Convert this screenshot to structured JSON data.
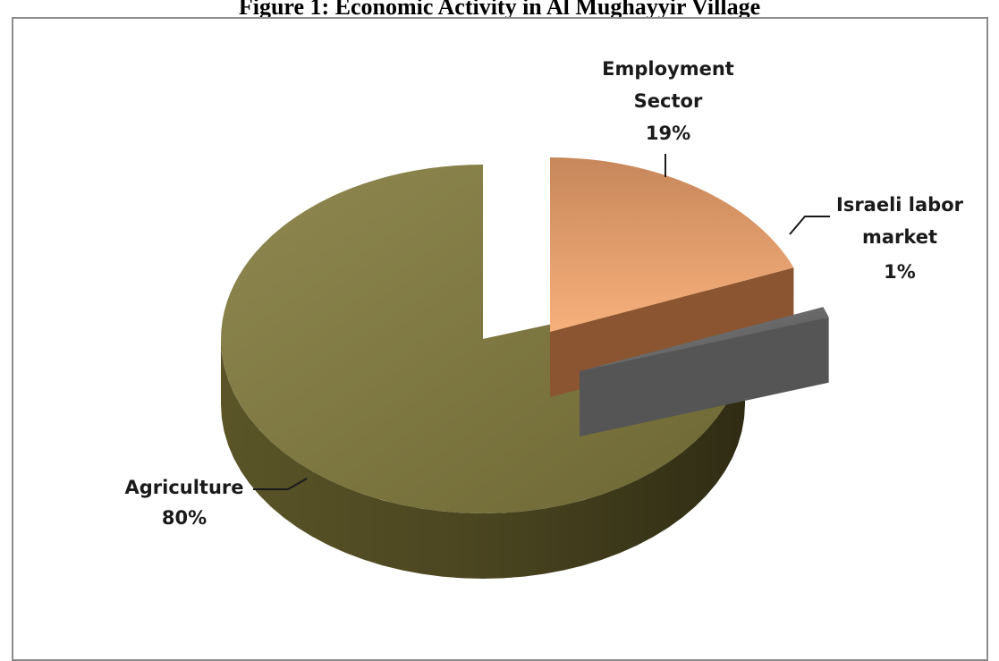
{
  "chart_data": {
    "type": "pie",
    "title": "Figure 1: Economic Activity in Al Mughayyir Village",
    "slices": [
      {
        "name": "Employment Sector",
        "value": 19,
        "label": "19%",
        "color": "#f0a46e",
        "exploded": true
      },
      {
        "name": "Israeli labor market",
        "value": 1,
        "label": "1%",
        "color": "#3a3a3a",
        "exploded": true
      },
      {
        "name": "Agriculture",
        "value": 80,
        "label": "80%",
        "color": "#7c7540",
        "exploded": false
      }
    ],
    "style": "3d-exploded-pie",
    "legend": "none"
  }
}
